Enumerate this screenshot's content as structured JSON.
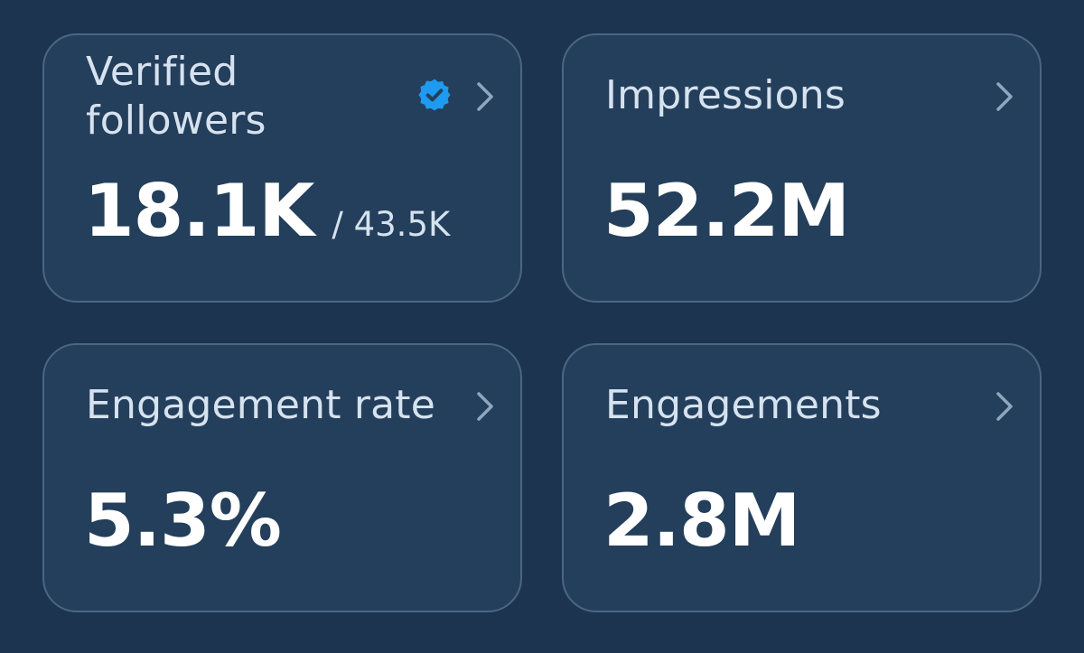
{
  "colors": {
    "background": "#1c3450",
    "card": "#243f5b",
    "card_border": "#4a6682",
    "verified_blue": "#1d9bf0"
  },
  "cards": {
    "verified_followers": {
      "label": "Verified followers",
      "value": "18.1K",
      "total": "/ 43.5K",
      "badge_icon": "verified-badge-icon",
      "chevron_icon": "chevron-right-icon"
    },
    "impressions": {
      "label": "Impressions",
      "value": "52.2M",
      "chevron_icon": "chevron-right-icon"
    },
    "engagement_rate": {
      "label": "Engagement rate",
      "value": "5.3%",
      "chevron_icon": "chevron-right-icon"
    },
    "engagements": {
      "label": "Engagements",
      "value": "2.8M",
      "chevron_icon": "chevron-right-icon"
    }
  }
}
